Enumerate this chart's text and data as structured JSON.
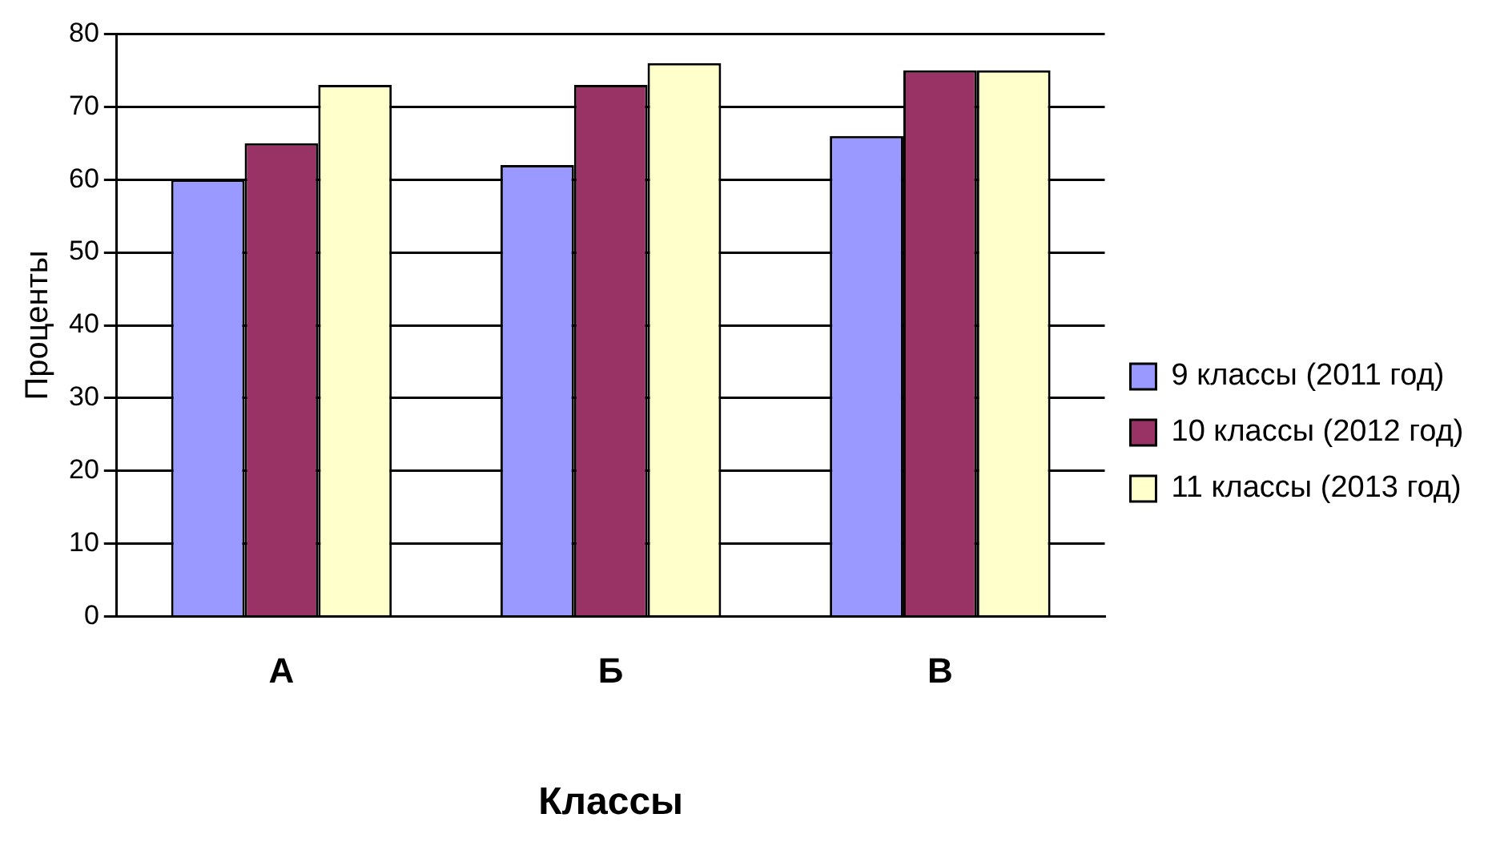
{
  "chart_data": {
    "type": "bar",
    "xlabel": "Классы",
    "ylabel": "Проценты",
    "categories": [
      "А",
      "Б",
      "В"
    ],
    "series": [
      {
        "name": "9 классы (2011 год)",
        "color": "#9999ff",
        "values": [
          60,
          62,
          66
        ]
      },
      {
        "name": "10 классы (2012 год)",
        "color": "#993366",
        "values": [
          65,
          73,
          75
        ]
      },
      {
        "name": "11 классы (2013 год)",
        "color": "#ffffcc",
        "values": [
          73,
          76,
          75
        ]
      }
    ],
    "ylim": [
      0,
      80
    ],
    "yticks": [
      0,
      10,
      20,
      30,
      40,
      50,
      60,
      70,
      80
    ],
    "grid": "y",
    "legend": "right"
  }
}
